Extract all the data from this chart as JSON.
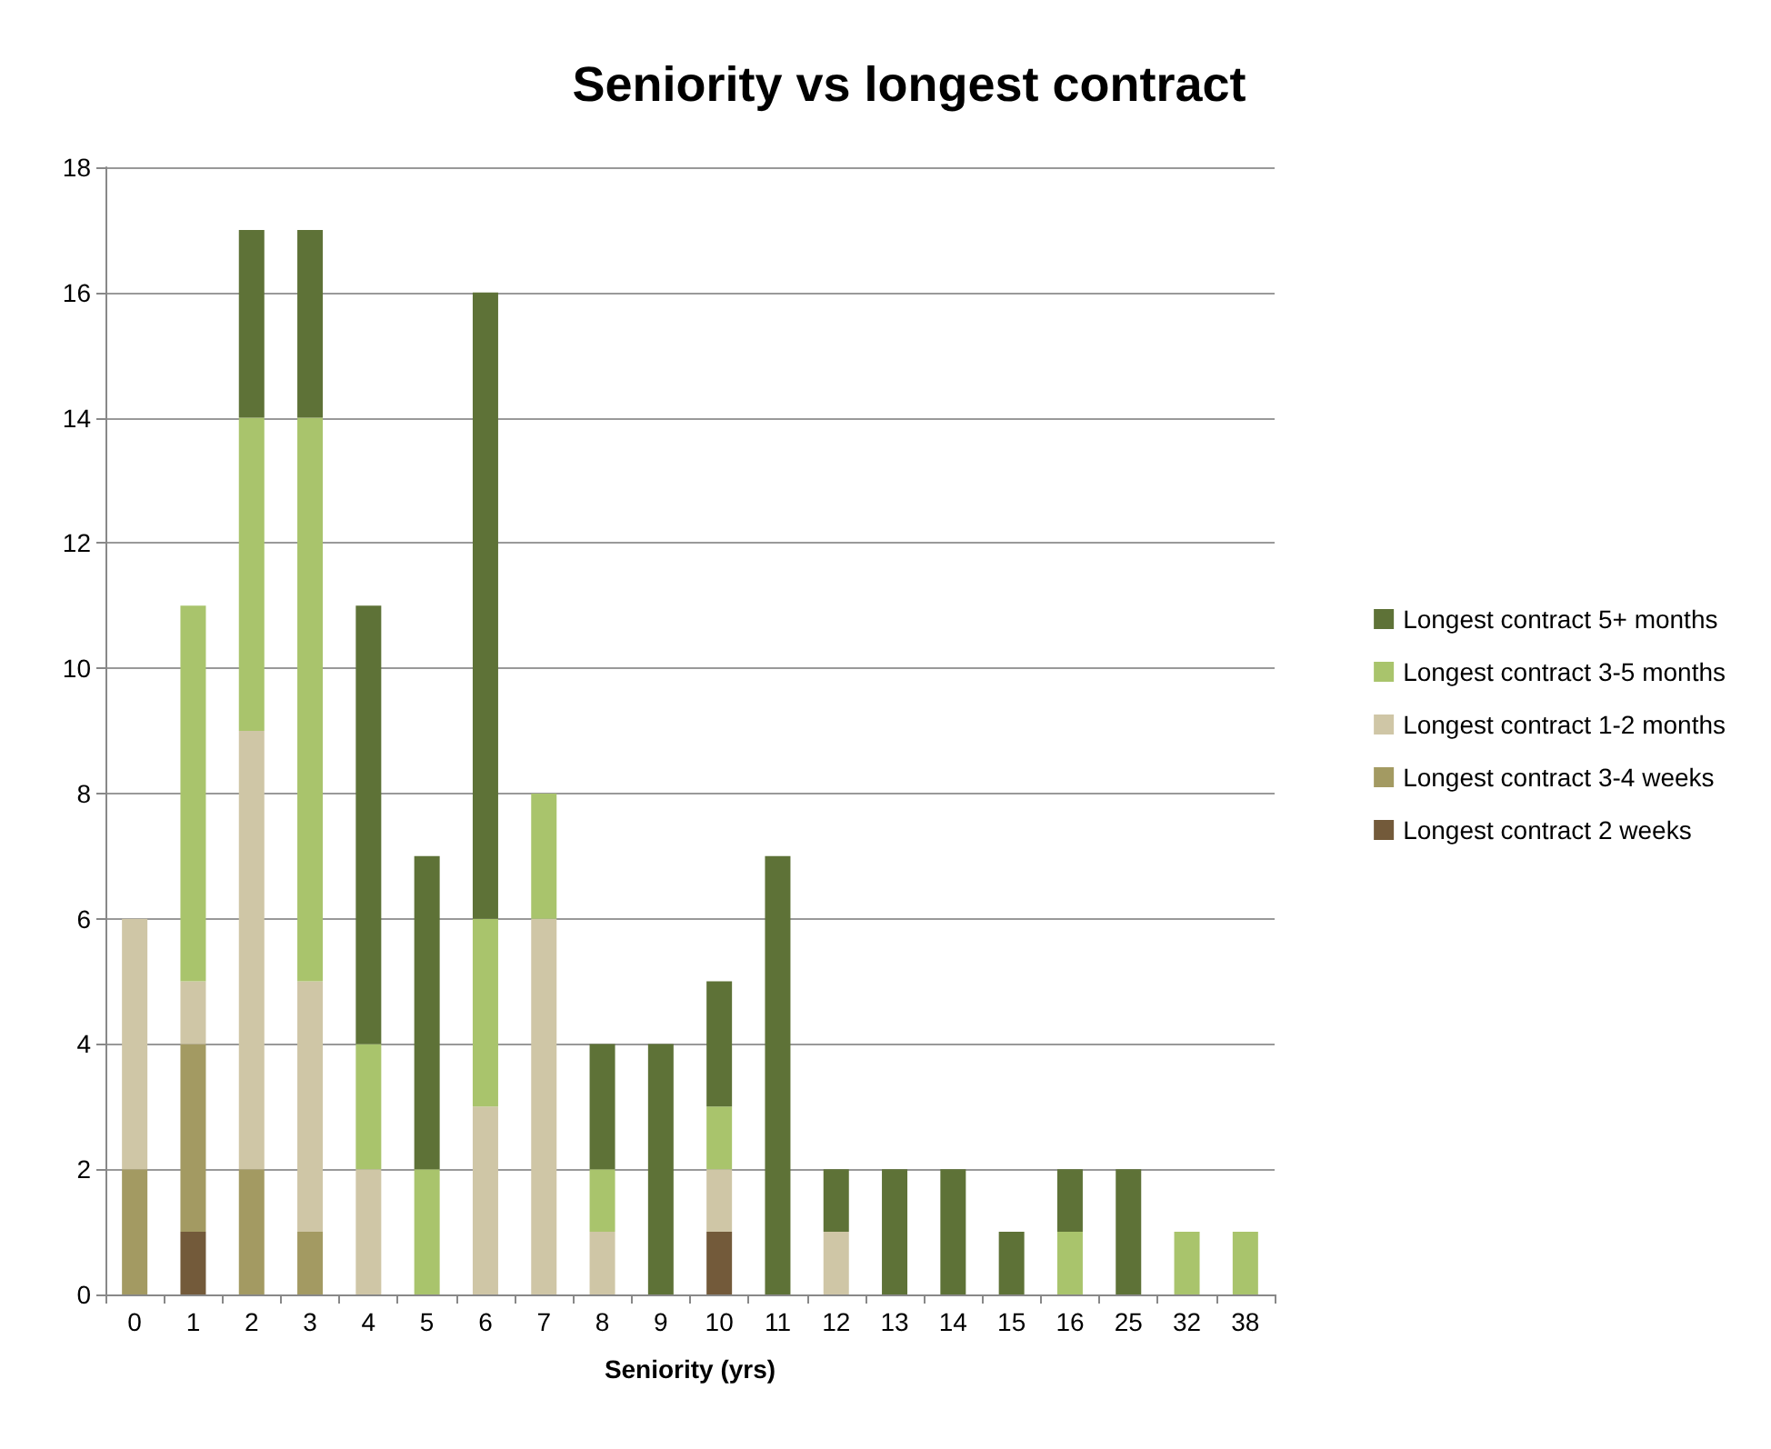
{
  "chart_data": {
    "type": "bar",
    "title": "Seniority vs longest contract",
    "xlabel": "Seniority (yrs)",
    "categories": [
      "0",
      "1",
      "2",
      "3",
      "4",
      "5",
      "6",
      "7",
      "8",
      "9",
      "10",
      "11",
      "12",
      "13",
      "14",
      "15",
      "16",
      "25",
      "32",
      "38"
    ],
    "stacked": true,
    "ylim": [
      0,
      18
    ],
    "yticks": [
      0,
      2,
      4,
      6,
      8,
      10,
      12,
      14,
      16,
      18
    ],
    "grid": "y",
    "legend": "right",
    "series": [
      {
        "name": "Longest contract 2 weeks",
        "color": "#735a3a",
        "values": [
          0,
          1,
          0,
          0,
          0,
          0,
          0,
          0,
          0,
          0,
          1,
          0,
          0,
          0,
          0,
          0,
          0,
          0,
          0,
          0
        ]
      },
      {
        "name": "Longest contract 3-4 weeks",
        "color": "#a39a62",
        "values": [
          2,
          3,
          2,
          1,
          0,
          0,
          0,
          0,
          0,
          0,
          0,
          0,
          0,
          0,
          0,
          0,
          0,
          0,
          0,
          0
        ]
      },
      {
        "name": "Longest contract 1-2 months",
        "color": "#cfc6a6",
        "values": [
          4,
          1,
          7,
          4,
          2,
          0,
          3,
          6,
          1,
          0,
          1,
          0,
          1,
          0,
          0,
          0,
          0,
          0,
          0,
          0
        ]
      },
      {
        "name": "Longest contract 3-5 months",
        "color": "#a9c46c",
        "values": [
          0,
          6,
          5,
          9,
          2,
          2,
          3,
          2,
          1,
          0,
          1,
          0,
          0,
          0,
          0,
          0,
          1,
          0,
          1,
          1
        ]
      },
      {
        "name": "Longest contract 5+ months",
        "color": "#5e7237",
        "values": [
          0,
          0,
          3,
          3,
          7,
          5,
          10,
          0,
          2,
          4,
          2,
          7,
          1,
          2,
          2,
          1,
          1,
          2,
          0,
          0
        ]
      }
    ]
  }
}
